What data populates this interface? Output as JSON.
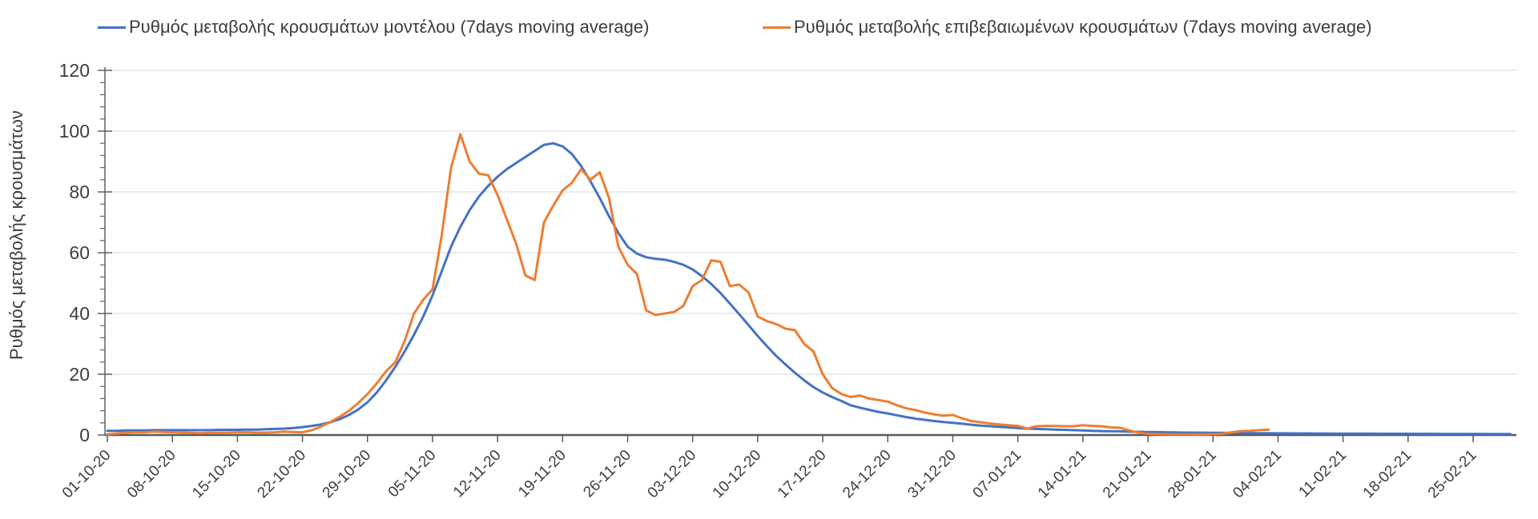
{
  "legend": {
    "items": [
      {
        "label": "Ρυθμός μεταβολής κρουσμάτων μοντέλου (7days moving average)",
        "color": "#4472c4"
      },
      {
        "label": "Ρυθμός μεταβολής επιβεβαιωμένων κρουσμάτων (7days moving average)",
        "color": "#ed7d31"
      }
    ]
  },
  "chart_data": {
    "type": "line",
    "title": "",
    "xlabel": "",
    "ylabel": "Ρυθμός μεταβολής κρουσμάτων",
    "ylim": [
      0,
      120
    ],
    "y_ticks": [
      0,
      20,
      40,
      60,
      80,
      100,
      120
    ],
    "y_minor_tick_step": 4,
    "grid": "horizontal-only",
    "grid_color": "#d9d9d9",
    "axis_color": "#616161",
    "tick_label_color": "#3d3d3d",
    "legend_position": "top",
    "x_tick_labels": [
      "01-10-20",
      "08-10-20",
      "15-10-20",
      "22-10-20",
      "29-10-20",
      "05-11-20",
      "12-11-20",
      "19-11-20",
      "26-11-20",
      "03-12-20",
      "10-12-20",
      "17-12-20",
      "24-12-20",
      "31-12-20",
      "07-01-21",
      "14-01-21",
      "21-01-21",
      "28-01-21",
      "04-02-21",
      "11-02-21",
      "18-02-21",
      "25-02-21"
    ],
    "x_tick_days": [
      0,
      7,
      14,
      21,
      28,
      35,
      42,
      49,
      56,
      63,
      70,
      77,
      84,
      91,
      98,
      105,
      112,
      119,
      126,
      133,
      140,
      147
    ],
    "x_unit": "days since 01-10-20, daily points",
    "series": [
      {
        "name": "Ρυθμός μεταβολής κρουσμάτων μοντέλου (7days moving average)",
        "color": "#4472c4",
        "start_day": 0,
        "values": [
          1.4,
          1.4,
          1.5,
          1.5,
          1.5,
          1.6,
          1.6,
          1.6,
          1.6,
          1.6,
          1.6,
          1.6,
          1.7,
          1.7,
          1.7,
          1.8,
          1.8,
          1.9,
          2.0,
          2.1,
          2.3,
          2.6,
          3.0,
          3.5,
          4.2,
          5.2,
          6.6,
          8.4,
          10.8,
          14.0,
          18.0,
          22.5,
          27.5,
          33,
          39,
          46,
          54,
          62,
          68.5,
          74,
          78.5,
          82,
          85,
          87.5,
          89.5,
          91.5,
          93.5,
          95.5,
          96,
          95,
          92.5,
          88.5,
          83.5,
          78,
          72,
          66.5,
          62,
          59.7,
          58.5,
          58,
          57.7,
          57,
          56,
          54.5,
          52.3,
          49.7,
          46.7,
          43.3,
          39.8,
          36.2,
          32.6,
          29.2,
          26,
          23.2,
          20.5,
          18,
          15.8,
          14,
          12.5,
          11.2,
          9.8,
          9,
          8.3,
          7.6,
          7.1,
          6.5,
          5.9,
          5.4,
          5,
          4.6,
          4.3,
          4,
          3.7,
          3.4,
          3.1,
          2.9,
          2.7,
          2.5,
          2.3,
          2.1,
          2,
          1.9,
          1.8,
          1.7,
          1.6,
          1.5,
          1.4,
          1.3,
          1.25,
          1.2,
          1.1,
          1.05,
          1,
          0.95,
          0.9,
          0.85,
          0.8,
          0.78,
          0.75,
          0.72,
          0.7,
          0.68,
          0.65,
          0.62,
          0.6,
          0.58,
          0.56,
          0.55,
          0.53,
          0.52,
          0.5,
          0.5,
          0.48,
          0.47,
          0.46,
          0.45,
          0.44,
          0.43,
          0.42,
          0.42,
          0.41,
          0.4,
          0.4,
          0.39,
          0.38,
          0.38,
          0.37,
          0.36,
          0.36,
          0.35,
          0.35,
          0.34
        ]
      },
      {
        "name": "Ρυθμός μεταβολής επιβεβαιωμένων κρουσμάτων (7days moving average)",
        "color": "#ed7d31",
        "start_day": 0,
        "values": [
          0.2,
          0.5,
          0.8,
          0.9,
          0.9,
          1.1,
          1,
          0.9,
          0.8,
          0.7,
          0.6,
          0.7,
          0.8,
          0.8,
          0.9,
          0.9,
          0.8,
          0.8,
          0.9,
          1.1,
          1,
          0.9,
          1.6,
          2.8,
          4.3,
          6,
          8,
          10.5,
          13.5,
          17,
          21,
          24,
          31,
          40,
          44.5,
          48,
          66,
          88,
          99,
          90,
          86,
          85.5,
          79,
          71,
          63,
          52.5,
          51,
          70,
          75.5,
          80.5,
          83,
          87.5,
          84,
          86.5,
          78,
          62,
          56,
          53,
          41,
          39.5,
          40,
          40.5,
          42.5,
          49,
          51,
          57.5,
          57,
          49,
          49.5,
          47,
          39,
          37.5,
          36.5,
          35,
          34.5,
          30,
          27.5,
          20,
          15.5,
          13.5,
          12.5,
          13,
          12,
          11.5,
          11,
          9.8,
          8.8,
          8.2,
          7.4,
          6.8,
          6.4,
          6.6,
          5.5,
          4.6,
          4.2,
          3.8,
          3.5,
          3.2,
          3,
          2.1,
          2.9,
          3,
          3,
          2.9,
          2.9,
          3.2,
          3,
          2.9,
          2.5,
          2.4,
          1.5,
          0.8,
          0.4,
          0.3,
          0.25,
          0.2,
          0.2,
          0.2,
          0.2,
          0.25,
          0.4,
          0.9,
          1.3,
          1.4,
          1.6,
          1.8
        ]
      }
    ]
  }
}
